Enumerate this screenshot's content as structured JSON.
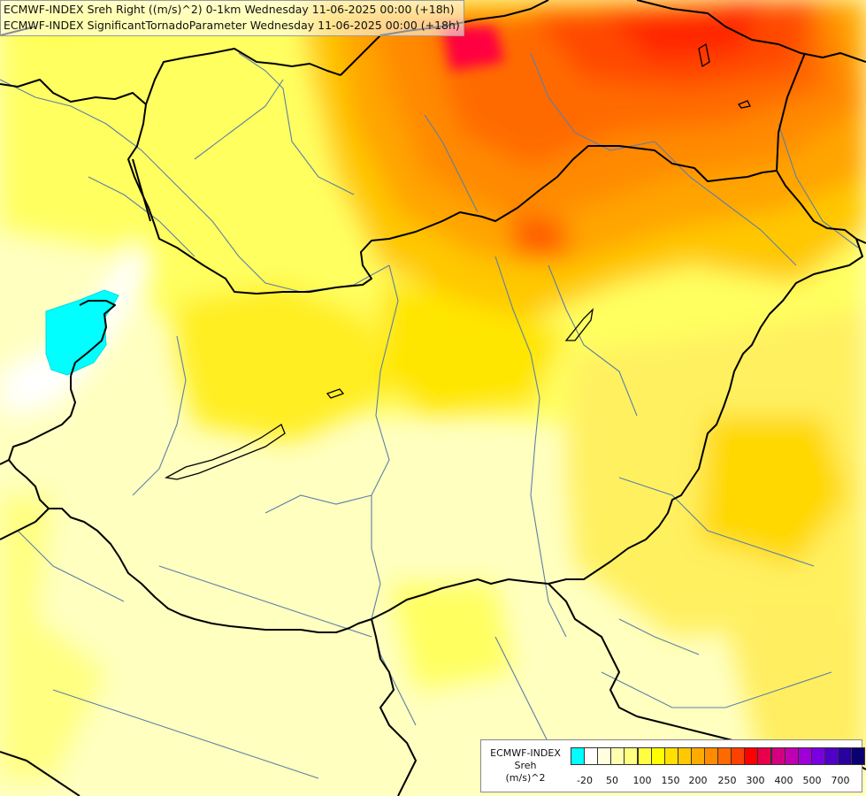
{
  "titles": {
    "line1": "ECMWF-INDEX Sreh Right ((m/s)^2) 0-1km Wednesday 11-06-2025 00:00 (+18h)",
    "line2": "ECMWF-INDEX SignificantTornadoParameter Wednesday 11-06-2025 00:00 (+18h)"
  },
  "legend": {
    "source": "ECMWF-INDEX",
    "parameter": "Sreh",
    "unit": "(m/s)^2",
    "colors": [
      "#00ffff",
      "#ffffff",
      "#ffffe0",
      "#ffffb0",
      "#ffff80",
      "#ffff40",
      "#ffff00",
      "#ffe000",
      "#ffc800",
      "#ffaa00",
      "#ff8c00",
      "#ff6a00",
      "#ff4000",
      "#ff0000",
      "#e8004a",
      "#d40080",
      "#c000b0",
      "#a000d8",
      "#7a00e0",
      "#5000c8",
      "#2a00a0",
      "#0a0070"
    ],
    "ticks": [
      "-20",
      "50",
      "100",
      "150",
      "200",
      "250",
      "300",
      "400",
      "500",
      "700"
    ]
  }
}
